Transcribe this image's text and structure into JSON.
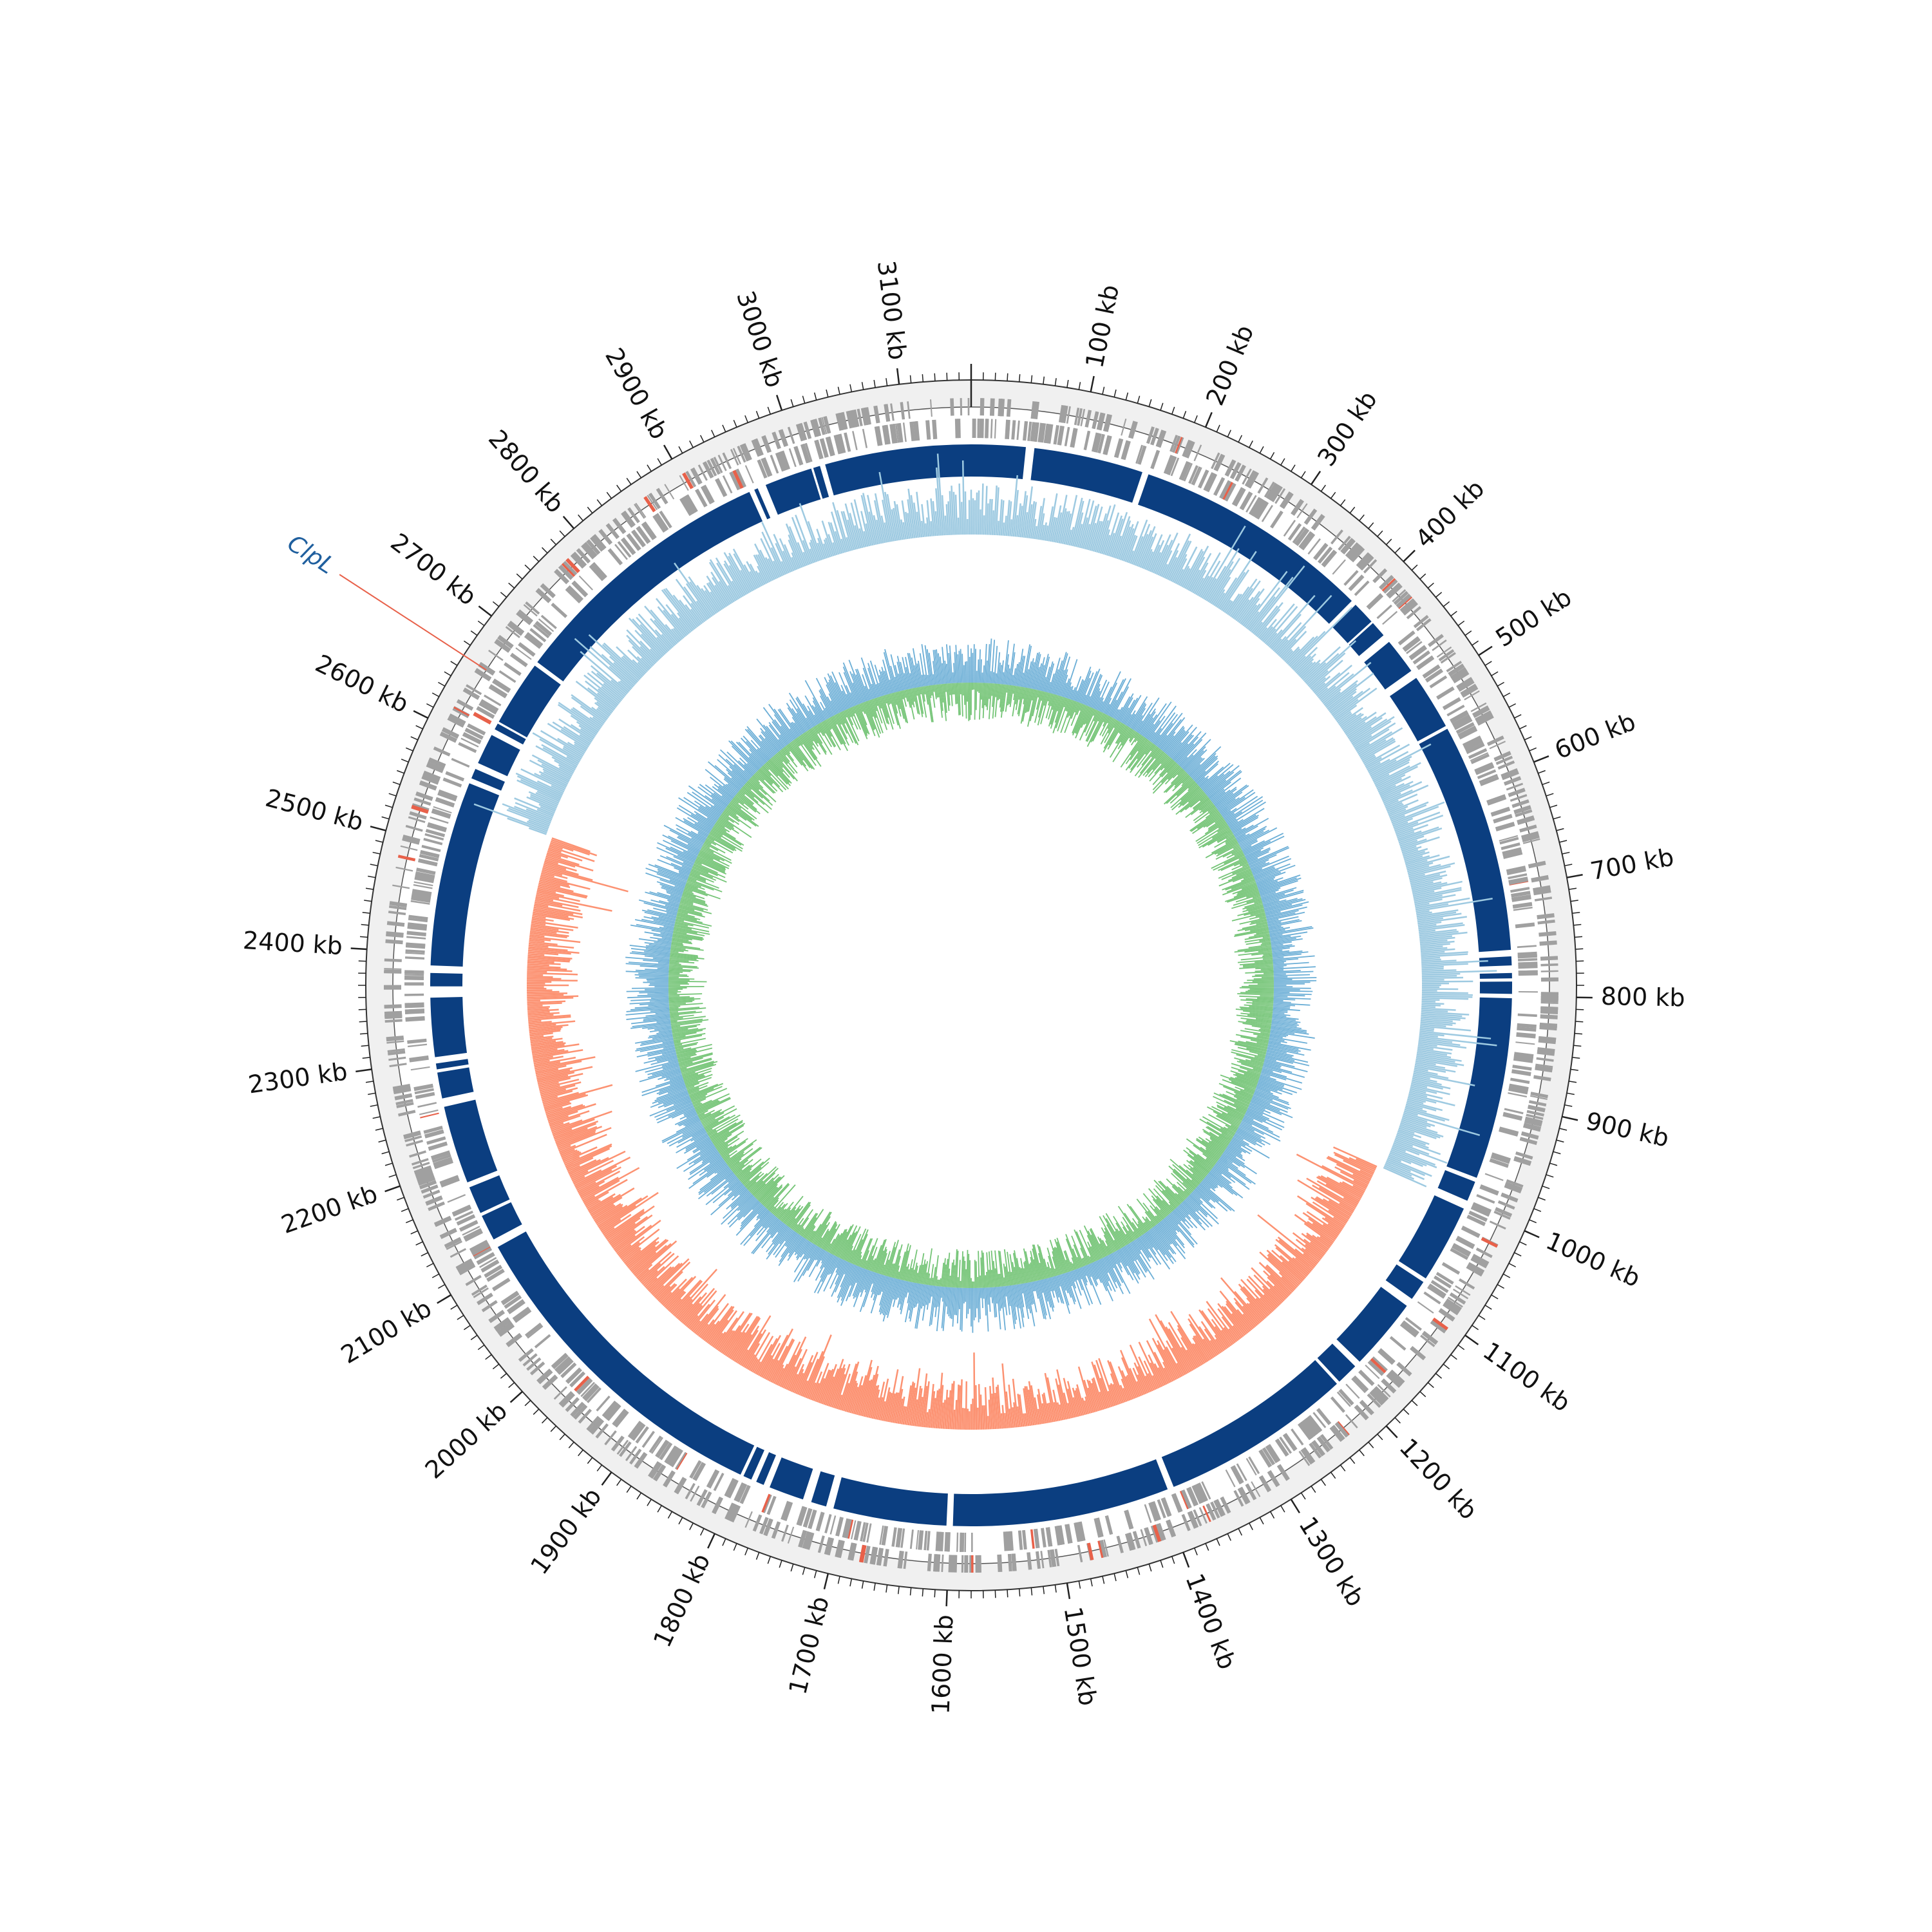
{
  "figure": {
    "genome_length_kb": 3160,
    "tick_labels": [
      {
        "kb": 100,
        "text": "100 kb"
      },
      {
        "kb": 200,
        "text": "200 kb"
      },
      {
        "kb": 300,
        "text": "300 kb"
      },
      {
        "kb": 400,
        "text": "400 kb"
      },
      {
        "kb": 500,
        "text": "500 kb"
      },
      {
        "kb": 600,
        "text": "600 kb"
      },
      {
        "kb": 700,
        "text": "700 kb"
      },
      {
        "kb": 800,
        "text": "800 kb"
      },
      {
        "kb": 900,
        "text": "900 kb"
      },
      {
        "kb": 1000,
        "text": "1000 kb"
      },
      {
        "kb": 1100,
        "text": "1100 kb"
      },
      {
        "kb": 1200,
        "text": "1200 kb"
      },
      {
        "kb": 1300,
        "text": "1300 kb"
      },
      {
        "kb": 1400,
        "text": "1400 kb"
      },
      {
        "kb": 1500,
        "text": "1500 kb"
      },
      {
        "kb": 1600,
        "text": "1600 kb"
      },
      {
        "kb": 1700,
        "text": "1700 kb"
      },
      {
        "kb": 1800,
        "text": "1800 kb"
      },
      {
        "kb": 1900,
        "text": "1900 kb"
      },
      {
        "kb": 2000,
        "text": "2000 kb"
      },
      {
        "kb": 2100,
        "text": "2100 kb"
      },
      {
        "kb": 2200,
        "text": "2200 kb"
      },
      {
        "kb": 2300,
        "text": "2300 kb"
      },
      {
        "kb": 2400,
        "text": "2400 kb"
      },
      {
        "kb": 2500,
        "text": "2500 kb"
      },
      {
        "kb": 2600,
        "text": "2600 kb"
      },
      {
        "kb": 2700,
        "text": "2700 kb"
      },
      {
        "kb": 2800,
        "text": "2800 kb"
      },
      {
        "kb": 2900,
        "text": "2900 kb"
      },
      {
        "kb": 3000,
        "text": "3000 kb"
      },
      {
        "kb": 3100,
        "text": "3100 kb"
      }
    ],
    "highlighted_gene": {
      "name": "ClpL",
      "kb": 2660,
      "label_color": "#1f5f9e",
      "leader_color": "#e8614a"
    },
    "colors": {
      "ring_background": "#f0f0f0",
      "gene_ticks": "#a0a0a0",
      "gene_ticks_highlight": "#e8614a",
      "blocks": "#0b3e80",
      "gc_skew_positive": "#9ecae1",
      "gc_skew_negative": "#fc9272",
      "gc_content": "#6baed6",
      "at_content": "#74c476"
    },
    "block_gaps_kb": [
      55,
      165,
      395,
      420,
      440,
      482,
      540,
      760,
      775,
      785,
      800,
      975,
      1000,
      1080,
      1105,
      1180,
      1205,
      1390,
      1600,
      1713,
      1735,
      1775,
      1788,
      1800,
      2120,
      2150,
      2180,
      2260,
      2290,
      2300,
      2360,
      2365,
      2385,
      2565,
      2580,
      2615,
      2625,
      2690,
      2950,
      2960,
      3010,
      3020
    ]
  }
}
